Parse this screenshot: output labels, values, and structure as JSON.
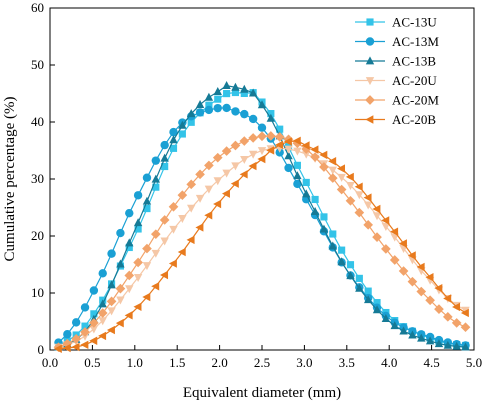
{
  "chart_data": {
    "type": "line",
    "xlabel": "Equivalent diameter (mm)",
    "ylabel": "Cumulative percentage (%)",
    "xlim": [
      0,
      5.0
    ],
    "ylim": [
      0,
      60
    ],
    "x_ticks": [
      "0.0",
      "0.5",
      "1.0",
      "1.5",
      "2.0",
      "2.5",
      "3.0",
      "3.5",
      "4.0",
      "4.5",
      "5.0"
    ],
    "y_ticks": [
      "0",
      "10",
      "20",
      "30",
      "40",
      "50",
      "60"
    ],
    "grid": false,
    "legend_position": "top-right",
    "series": [
      {
        "name": "AC-13U",
        "color": "#33c3e8",
        "marker": "square",
        "x": [
          0.1,
          0.5,
          1.0,
          1.5,
          2.0,
          2.3,
          2.5,
          3.0,
          3.5,
          4.0,
          4.5,
          4.9
        ],
        "y": [
          0.8,
          6.0,
          20.0,
          36.5,
          44.2,
          45.0,
          43.5,
          30.0,
          16.0,
          6.0,
          2.0,
          0.8
        ]
      },
      {
        "name": "AC-13M",
        "color": "#1aa0d4",
        "marker": "circle",
        "x": [
          0.1,
          0.5,
          1.0,
          1.5,
          2.0,
          2.1,
          2.5,
          3.0,
          3.5,
          4.0,
          4.5,
          4.9
        ],
        "y": [
          1.3,
          10.0,
          26.0,
          39.0,
          42.5,
          42.2,
          39.0,
          27.0,
          14.0,
          5.5,
          2.2,
          0.8
        ]
      },
      {
        "name": "AC-13B",
        "color": "#157a96",
        "marker": "triangle-up",
        "x": [
          0.1,
          0.5,
          1.0,
          1.5,
          2.0,
          2.2,
          2.5,
          3.0,
          3.5,
          4.0,
          4.5,
          4.9
        ],
        "y": [
          0.5,
          5.0,
          21.0,
          38.0,
          45.5,
          46.0,
          43.0,
          28.0,
          14.0,
          5.0,
          1.5,
          0.5
        ]
      },
      {
        "name": "AC-20U",
        "color": "#f5c7a6",
        "marker": "triangle-down",
        "x": [
          0.1,
          0.5,
          1.0,
          1.5,
          2.0,
          2.5,
          3.0,
          3.5,
          4.0,
          4.5,
          4.9
        ],
        "y": [
          0.5,
          3.5,
          12.0,
          22.0,
          30.0,
          35.0,
          34.5,
          29.5,
          21.0,
          12.0,
          7.0
        ]
      },
      {
        "name": "AC-20M",
        "color": "#f2a36a",
        "marker": "diamond",
        "x": [
          0.1,
          0.5,
          1.0,
          1.5,
          2.0,
          2.5,
          3.0,
          3.5,
          4.0,
          4.5,
          4.9
        ],
        "y": [
          0.5,
          4.5,
          14.5,
          26.0,
          34.0,
          37.5,
          35.5,
          27.0,
          17.0,
          8.5,
          4.0
        ]
      },
      {
        "name": "AC-20B",
        "color": "#e87a1d",
        "marker": "triangle-left",
        "x": [
          0.1,
          0.5,
          1.0,
          1.5,
          2.0,
          2.5,
          2.8,
          3.0,
          3.5,
          4.0,
          4.5,
          4.9
        ],
        "y": [
          0.2,
          1.5,
          7.0,
          16.0,
          26.0,
          33.5,
          36.5,
          36.0,
          31.0,
          22.0,
          12.5,
          6.5
        ]
      }
    ]
  }
}
